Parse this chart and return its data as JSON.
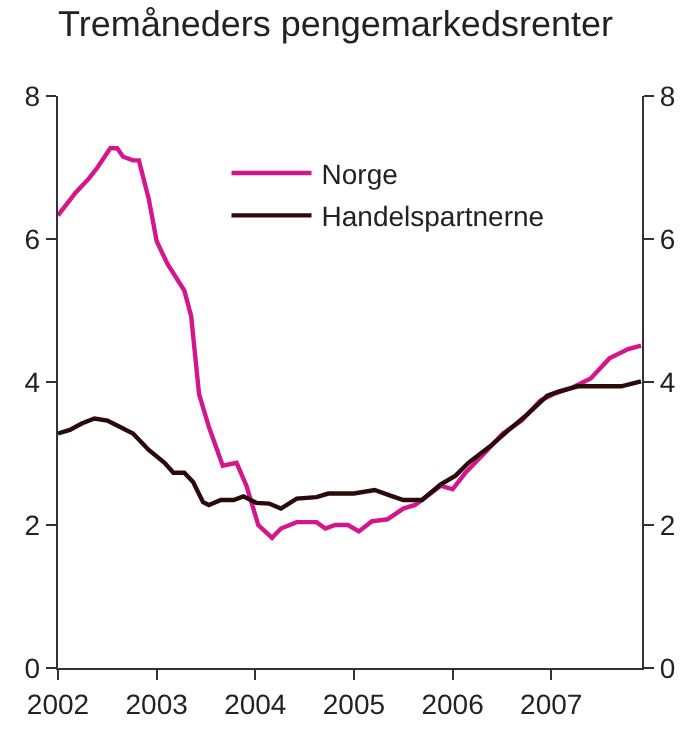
{
  "chart_data": {
    "type": "line",
    "title": "Tremåneders pengemarkedsrenter",
    "xlim": [
      2002,
      2007.92
    ],
    "xticks": [
      2002,
      2003,
      2004,
      2005,
      2006,
      2007
    ],
    "ylim": [
      0,
      8
    ],
    "yticks": [
      0,
      2,
      4,
      6,
      8
    ],
    "y2lim": [
      0,
      8
    ],
    "y2ticks": [
      0,
      2,
      4,
      6,
      8
    ],
    "legend": "top",
    "marker": "none",
    "line_style": "solid",
    "series": [
      {
        "name": "Norge",
        "color": "#d4168c",
        "x": [
          2002.0,
          2002.18,
          2002.31,
          2002.4,
          2002.53,
          2002.6,
          2002.66,
          2002.76,
          2002.82,
          2002.92,
          2003.0,
          2003.11,
          2003.28,
          2003.35,
          2003.43,
          2003.53,
          2003.67,
          2003.81,
          2003.91,
          2004.03,
          2004.17,
          2004.26,
          2004.42,
          2004.62,
          2004.71,
          2004.81,
          2004.94,
          2005.05,
          2005.18,
          2005.34,
          2005.5,
          2005.62,
          2005.88,
          2006.0,
          2006.13,
          2006.32,
          2006.51,
          2006.7,
          2006.89,
          2007.02,
          2007.21,
          2007.4,
          2007.59,
          2007.78,
          2007.91
        ],
        "values": [
          6.33,
          6.65,
          6.84,
          7.0,
          7.27,
          7.27,
          7.15,
          7.1,
          7.1,
          6.56,
          5.97,
          5.65,
          5.28,
          4.92,
          3.83,
          3.37,
          2.83,
          2.87,
          2.55,
          2.0,
          1.82,
          1.95,
          2.04,
          2.04,
          1.95,
          2.0,
          2.0,
          1.91,
          2.05,
          2.08,
          2.23,
          2.28,
          2.55,
          2.5,
          2.73,
          3.0,
          3.28,
          3.46,
          3.74,
          3.83,
          3.92,
          4.05,
          4.33,
          4.46,
          4.51
        ]
      },
      {
        "name": "Handelspartnerne",
        "color": "#2a0a0a",
        "x": [
          2002.0,
          2002.12,
          2002.24,
          2002.37,
          2002.5,
          2002.63,
          2002.76,
          2002.92,
          2003.08,
          2003.17,
          2003.28,
          2003.37,
          2003.47,
          2003.53,
          2003.65,
          2003.78,
          2003.88,
          2004.01,
          2004.14,
          2004.26,
          2004.42,
          2004.62,
          2004.74,
          2005.0,
          2005.21,
          2005.37,
          2005.5,
          2005.69,
          2005.88,
          2006.03,
          2006.16,
          2006.38,
          2006.57,
          2006.76,
          2006.96,
          2007.08,
          2007.27,
          2007.52,
          2007.71,
          2007.91
        ],
        "values": [
          3.28,
          3.33,
          3.42,
          3.49,
          3.46,
          3.37,
          3.28,
          3.05,
          2.87,
          2.73,
          2.73,
          2.6,
          2.32,
          2.28,
          2.35,
          2.35,
          2.4,
          2.31,
          2.3,
          2.23,
          2.37,
          2.39,
          2.44,
          2.44,
          2.49,
          2.41,
          2.35,
          2.35,
          2.57,
          2.69,
          2.87,
          3.1,
          3.33,
          3.55,
          3.81,
          3.87,
          3.94,
          3.94,
          3.94,
          4.01
        ]
      }
    ]
  }
}
